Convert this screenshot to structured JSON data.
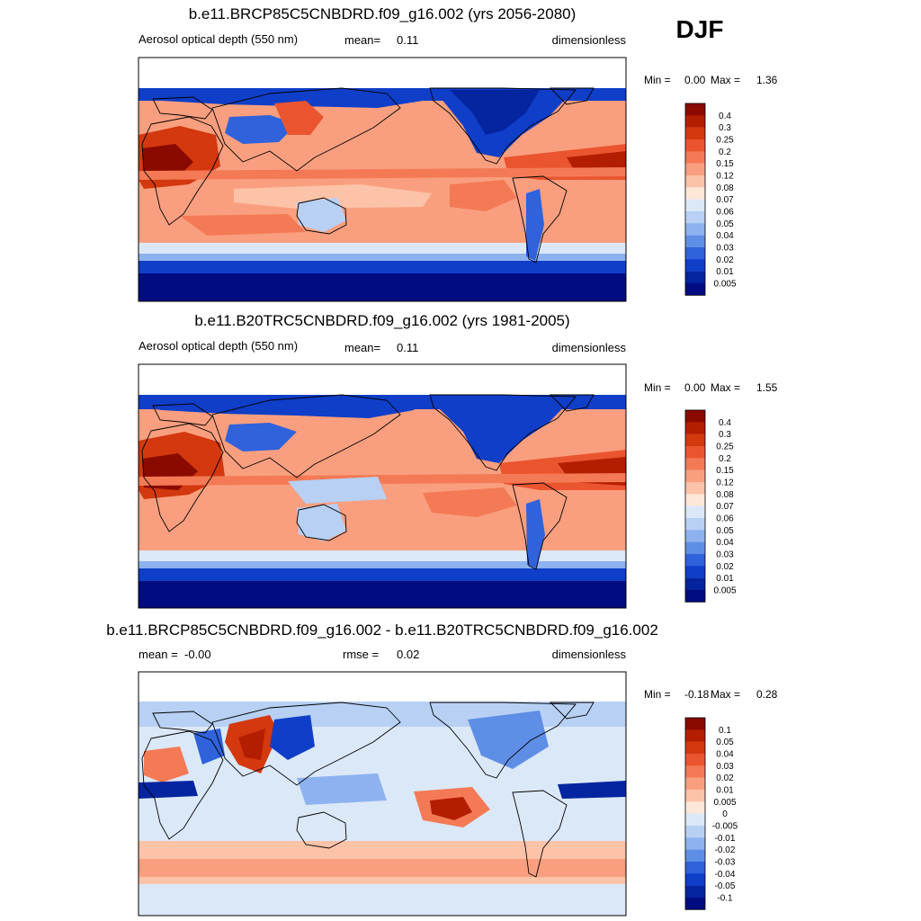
{
  "season": "DJF",
  "chart_data": [
    {
      "type": "heatmap",
      "title": "b.e11.BRCP85C5CNBDRD.f09_g16.002 (yrs 2056-2080)",
      "variable": "Aerosol optical depth (550 nm)",
      "stat_left_label": "mean=",
      "stat_left_value": "0.11",
      "units": "dimensionless",
      "min_label": "Min =",
      "min_value": "0.00",
      "max_label": "Max =",
      "max_value": "1.36",
      "levels": [
        "0.4",
        "0.3",
        "0.25",
        "0.2",
        "0.15",
        "0.12",
        "0.08",
        "0.07",
        "0.06",
        "0.05",
        "0.04",
        "0.03",
        "0.02",
        "0.01",
        "0.005"
      ],
      "colors": [
        "#8b0a00",
        "#b41e00",
        "#d3380e",
        "#ea5530",
        "#f47a55",
        "#f99f7f",
        "#fcc3a8",
        "#fde7d8",
        "#dbe8f8",
        "#b7d0f4",
        "#8db2ef",
        "#5f8ee6",
        "#2f62db",
        "#0f3ec8",
        "#0524a0",
        "#000c80"
      ]
    },
    {
      "type": "heatmap",
      "title": "b.e11.B20TRC5CNBDRD.f09_g16.002 (yrs 1981-2005)",
      "variable": "Aerosol optical depth (550 nm)",
      "stat_left_label": "mean=",
      "stat_left_value": "0.11",
      "units": "dimensionless",
      "min_label": "Min =",
      "min_value": "0.00",
      "max_label": "Max =",
      "max_value": "1.55",
      "levels": [
        "0.4",
        "0.3",
        "0.25",
        "0.2",
        "0.15",
        "0.12",
        "0.08",
        "0.07",
        "0.06",
        "0.05",
        "0.04",
        "0.03",
        "0.02",
        "0.01",
        "0.005"
      ],
      "colors": [
        "#8b0a00",
        "#b41e00",
        "#d3380e",
        "#ea5530",
        "#f47a55",
        "#f99f7f",
        "#fcc3a8",
        "#fde7d8",
        "#dbe8f8",
        "#b7d0f4",
        "#8db2ef",
        "#5f8ee6",
        "#2f62db",
        "#0f3ec8",
        "#0524a0",
        "#000c80"
      ]
    },
    {
      "type": "heatmap",
      "title": "b.e11.BRCP85C5CNBDRD.f09_g16.002 - b.e11.B20TRC5CNBDRD.f09_g16.002",
      "stat_left_label": "mean =",
      "stat_left_value": "-0.00",
      "stat_mid_label": "rmse =",
      "stat_mid_value": "0.02",
      "units": "dimensionless",
      "min_label": "Min =",
      "min_value": "-0.18",
      "max_label": "Max =",
      "max_value": "0.28",
      "levels": [
        "0.1",
        "0.05",
        "0.04",
        "0.03",
        "0.02",
        "0.01",
        "0.005",
        "0",
        "-0.005",
        "-0.01",
        "-0.02",
        "-0.03",
        "-0.04",
        "-0.05",
        "-0.1"
      ],
      "colors": [
        "#8b0a00",
        "#b41e00",
        "#d3380e",
        "#ea5530",
        "#f47a55",
        "#f99f7f",
        "#fcc3a8",
        "#fde7d8",
        "#dbe8f8",
        "#b7d0f4",
        "#8db2ef",
        "#5f8ee6",
        "#2f62db",
        "#0f3ec8",
        "#0524a0",
        "#000c80"
      ]
    }
  ]
}
